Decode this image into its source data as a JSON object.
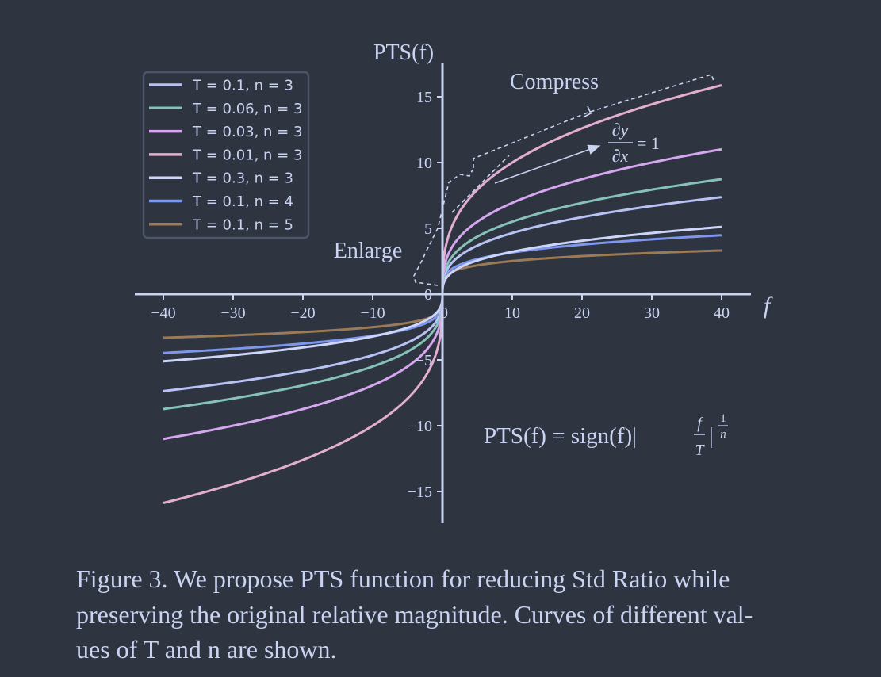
{
  "chart_data": {
    "type": "line",
    "ylabel": "PTS(f)",
    "xlabel": "f",
    "xlim": [
      -40,
      40
    ],
    "ylim": [
      -16,
      16
    ],
    "x_ticks": [
      "−40",
      "−30",
      "−20",
      "−10",
      "0",
      "10",
      "20",
      "30",
      "40"
    ],
    "y_ticks": [
      "−15",
      "−10",
      "−5",
      "0",
      "5",
      "10",
      "15"
    ],
    "legend_position": "top-left",
    "series": [
      {
        "name": "T = 0.1, n = 3",
        "T": 0.1,
        "n": 3,
        "color": "#b9c2f4"
      },
      {
        "name": "T = 0.06, n = 3",
        "T": 0.06,
        "n": 3,
        "color": "#86c2b8"
      },
      {
        "name": "T = 0.03, n = 3",
        "T": 0.03,
        "n": 3,
        "color": "#d6a6f0"
      },
      {
        "name": "T = 0.01, n = 3",
        "T": 0.01,
        "n": 3,
        "color": "#e3aed1"
      },
      {
        "name": "T = 0.3, n = 3",
        "T": 0.3,
        "n": 3,
        "color": "#cdd5fb"
      },
      {
        "name": "T = 0.1, n = 4",
        "T": 0.1,
        "n": 4,
        "color": "#7d97ee"
      },
      {
        "name": "T = 0.1, n = 5",
        "T": 0.1,
        "n": 5,
        "color": "#9b7a57"
      }
    ],
    "annotations": {
      "compress": "Compress",
      "enlarge": "Enlarge",
      "deriv_num": "∂y",
      "deriv_den": "∂x",
      "deriv_eq": "= 1",
      "formula_left": "PTS(f) = sign(f)|",
      "formula_frac_num": "f",
      "formula_frac_den": "T",
      "formula_bar": "|",
      "formula_exp_num": "1",
      "formula_exp_den": "n"
    }
  },
  "caption": {
    "line1": "Figure 3.  We propose PTS function for reducing Std Ratio while",
    "line2": "preserving the original relative magnitude. Curves of different val-",
    "line3": "ues of T and n are shown."
  }
}
